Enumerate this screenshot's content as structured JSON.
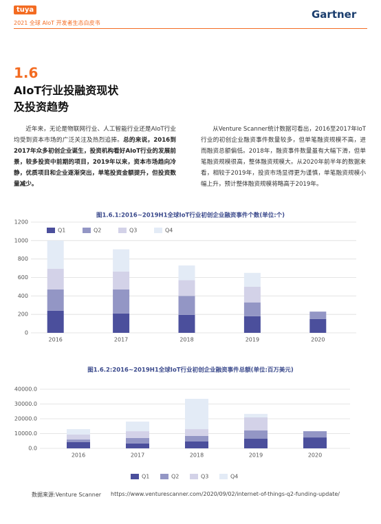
{
  "header": {
    "logo": "tuya",
    "report": "2021 全球 AIoT 开发者生态白皮书",
    "brand": "Gartner"
  },
  "section": {
    "number": "1.6",
    "title_lines": [
      "AIoT行业投融资现状",
      "及投资趋势"
    ]
  },
  "left_paragraph": {
    "plain": "近年来，无论是物联网行业、人工智能行业还是AIoT行业均受到资本市场的广泛关注及热烈追捧。",
    "bold": "总的来说，2016到2017年众多初创企业诞生，投资机构看好AIoT行业的发展前景，较多投资中前期的项目，2019年以来，资本市场趋向冷静，优质项目和企业逐渐突出，单笔投资金额提升，但投资数量减少。"
  },
  "right_paragraph": "从Venture Scanner统计数据可看出，2016至2017年IoT行业的初创企业融资事件数量较多，但单笔融资规模不高，进而融资总额偏低。2018年，融资事件数量虽有大幅下滑，但单笔融资规模很高，整体融资规模大。从2020年前半年的数据来看，相较于2019年，投资市场显得更为谨慎，单笔融资规模小幅上升，预计整体融资规模将略高于2019年。",
  "chart_data": [
    {
      "type": "stacked-bar",
      "title": "图1.6.1:2016~2019H1全球IoT行业初创企业融资事件个数(单位:个)",
      "categories": [
        "2016",
        "2017",
        "2018",
        "2019",
        "2020"
      ],
      "series": [
        {
          "name": "Q1",
          "color": "#4b4f9c",
          "values": [
            240,
            210,
            195,
            180,
            150
          ]
        },
        {
          "name": "Q2",
          "color": "#9396c5",
          "values": [
            230,
            260,
            205,
            150,
            80
          ]
        },
        {
          "name": "Q3",
          "color": "#d3d2e8",
          "values": [
            225,
            195,
            170,
            170,
            null
          ]
        },
        {
          "name": "Q4",
          "color": "#e3ebf6",
          "values": [
            305,
            240,
            160,
            150,
            null
          ]
        }
      ],
      "ylim": [
        0,
        1200
      ],
      "yticks": [
        0,
        200,
        400,
        600,
        800,
        1000,
        1200
      ],
      "grid": true,
      "legend": "top"
    },
    {
      "type": "stacked-bar",
      "title": "图1.6.2:2016~2019H1全球IoT行业初创企业融资事件总额(单位:百万美元)",
      "categories": [
        "2016",
        "2017",
        "2018",
        "2019",
        "2020"
      ],
      "series": [
        {
          "name": "Q1",
          "color": "#4b4f9c",
          "values": [
            4200,
            3300,
            4700,
            6500,
            7400
          ]
        },
        {
          "name": "Q2",
          "color": "#9396c5",
          "values": [
            1800,
            3700,
            3700,
            5600,
            4200
          ]
        },
        {
          "name": "Q3",
          "color": "#d3d2e8",
          "values": [
            3300,
            4600,
            4600,
            8900,
            null
          ]
        },
        {
          "name": "Q4",
          "color": "#e3ebf6",
          "values": [
            3700,
            6500,
            20500,
            2300,
            null
          ]
        }
      ],
      "ylim": [
        0,
        40000
      ],
      "yticks": [
        {
          "value": 0,
          "label": "0.0"
        },
        {
          "value": 10000,
          "label": "10000.0"
        },
        {
          "value": 20000,
          "label": "20000.0"
        },
        {
          "value": 30000,
          "label": "30000.0"
        },
        {
          "value": 40000,
          "label": "40000.0"
        }
      ],
      "grid": true,
      "legend": "bottom"
    }
  ],
  "source": {
    "label": "数据来源:Venture Scanner",
    "url": "https://www.venturescanner.com/2020/09/02/internet-of-things-q2-funding-update/"
  }
}
